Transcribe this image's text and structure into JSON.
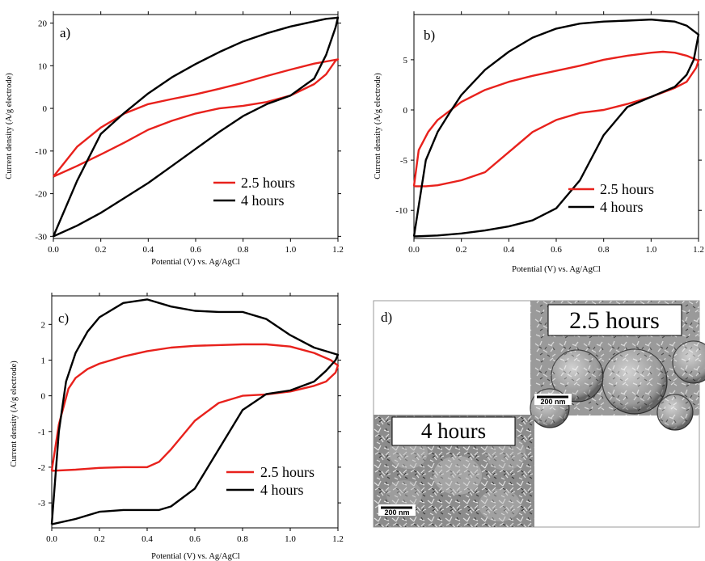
{
  "colors": {
    "red": "#e8211c",
    "black": "#000000"
  },
  "chart_data": [
    {
      "panel": "a)",
      "type": "line",
      "xlabel": "Potential (V) vs. Ag/AgCl",
      "ylabel": "Current density (A/g electrode)",
      "xlim": [
        0,
        1.2
      ],
      "ylim": [
        -30.5,
        22
      ],
      "xticks": [
        0.0,
        0.2,
        0.4,
        0.6,
        0.8,
        1.0,
        1.2
      ],
      "xtick_labels": [
        "0.0",
        "0.2",
        "0.4",
        "0.6",
        "0.8",
        "1.0",
        "1.2"
      ],
      "yticks": [
        -30,
        -20,
        -10,
        0,
        10,
        20
      ],
      "ytick_labels": [
        "-30",
        "-20",
        "-10",
        "0",
        "10",
        "20"
      ],
      "legend_position": "bottom-right",
      "series": [
        {
          "name": "2.5 hours",
          "color": "#e8211c",
          "x": [
            0.0,
            0.1,
            0.2,
            0.3,
            0.4,
            0.5,
            0.6,
            0.7,
            0.8,
            0.9,
            1.0,
            1.1,
            1.17,
            1.2,
            1.19,
            1.15,
            1.1,
            1.0,
            0.9,
            0.8,
            0.7,
            0.6,
            0.5,
            0.4,
            0.3,
            0.2,
            0.1,
            0.0
          ],
          "y": [
            -16,
            -9,
            -4.5,
            -1.2,
            1,
            2.2,
            3.3,
            4.6,
            6,
            7.6,
            9.1,
            10.5,
            11.2,
            11.5,
            11.2,
            8,
            5.7,
            3,
            1.5,
            0.6,
            0,
            -1.2,
            -2.9,
            -5,
            -8,
            -10.8,
            -13.5,
            -16
          ]
        },
        {
          "name": "4 hours",
          "color": "#000000",
          "x": [
            0.0,
            0.1,
            0.2,
            0.3,
            0.4,
            0.5,
            0.6,
            0.7,
            0.8,
            0.9,
            1.0,
            1.1,
            1.15,
            1.19,
            1.2,
            1.19,
            1.15,
            1.1,
            1.0,
            0.9,
            0.8,
            0.7,
            0.6,
            0.5,
            0.4,
            0.3,
            0.2,
            0.1,
            0.0
          ],
          "y": [
            -30,
            -17,
            -6,
            -1,
            3.5,
            7.3,
            10.4,
            13.2,
            15.7,
            17.6,
            19.2,
            20.4,
            21,
            21.2,
            21.3,
            19,
            12.5,
            7,
            3,
            1,
            -1.8,
            -5.5,
            -9.5,
            -13.5,
            -17.5,
            -21,
            -24.5,
            -27.5,
            -30
          ]
        }
      ]
    },
    {
      "panel": "b)",
      "type": "line",
      "xlabel": "Potential (V) vs. Ag/AgCl",
      "ylabel": "Current density (A/g electrode)",
      "xlim": [
        0,
        1.2
      ],
      "ylim": [
        -12.8,
        9.5
      ],
      "xticks": [
        0.0,
        0.2,
        0.4,
        0.6,
        0.8,
        1.0,
        1.2
      ],
      "xtick_labels": [
        "0.0",
        "0.2",
        "0.4",
        "0.6",
        "0.8",
        "1.0",
        "1.2"
      ],
      "yticks": [
        -10,
        -5,
        0,
        5
      ],
      "ytick_labels": [
        "-10",
        "-5",
        "0",
        "5"
      ],
      "legend_position": "bottom-right",
      "series": [
        {
          "name": "2.5 hours",
          "color": "#e8211c",
          "x": [
            0.0,
            0.02,
            0.06,
            0.1,
            0.2,
            0.3,
            0.4,
            0.5,
            0.6,
            0.7,
            0.8,
            0.9,
            1.0,
            1.05,
            1.1,
            1.15,
            1.2,
            1.19,
            1.17,
            1.15,
            1.1,
            1.0,
            0.9,
            0.8,
            0.7,
            0.6,
            0.5,
            0.4,
            0.3,
            0.2,
            0.1,
            0.05,
            0.0
          ],
          "y": [
            -7.6,
            -4,
            -2.2,
            -1,
            0.8,
            2,
            2.8,
            3.4,
            3.9,
            4.4,
            5,
            5.4,
            5.7,
            5.8,
            5.7,
            5.4,
            4.9,
            4.2,
            3.5,
            2.8,
            2.2,
            1.3,
            0.6,
            0,
            -0.3,
            -1,
            -2.2,
            -4.2,
            -6.2,
            -7,
            -7.5,
            -7.6,
            -7.6
          ]
        },
        {
          "name": "4 hours",
          "color": "#000000",
          "x": [
            0.0,
            0.05,
            0.1,
            0.15,
            0.2,
            0.3,
            0.4,
            0.5,
            0.6,
            0.7,
            0.8,
            0.9,
            1.0,
            1.05,
            1.1,
            1.15,
            1.2,
            1.18,
            1.15,
            1.1,
            1.0,
            0.9,
            0.8,
            0.7,
            0.6,
            0.5,
            0.4,
            0.3,
            0.2,
            0.1,
            0.0
          ],
          "y": [
            -12.6,
            -5,
            -2.2,
            -0.3,
            1.5,
            4,
            5.8,
            7.2,
            8.1,
            8.6,
            8.8,
            8.9,
            9,
            8.9,
            8.8,
            8.4,
            7.5,
            5,
            3.5,
            2.3,
            1.3,
            0.3,
            -2.5,
            -7,
            -9.8,
            -11,
            -11.6,
            -12,
            -12.3,
            -12.5,
            -12.6
          ]
        }
      ]
    },
    {
      "panel": "c)",
      "type": "line",
      "xlabel": "Potential (V) vs. Ag/AgCl",
      "ylabel": "Current density (A/g electrode)",
      "xlim": [
        0,
        1.2
      ],
      "ylim": [
        -3.7,
        2.8
      ],
      "xticks": [
        0.0,
        0.2,
        0.4,
        0.6,
        0.8,
        1.0,
        1.2
      ],
      "xtick_labels": [
        "0.0",
        "0.2",
        "0.4",
        "0.6",
        "0.8",
        "1.0",
        "1.2"
      ],
      "yticks": [
        -3,
        -2,
        -1,
        0,
        1,
        2
      ],
      "ytick_labels": [
        "-3",
        "-2",
        "-1",
        "0",
        "1",
        "2"
      ],
      "legend_position": "bottom-right",
      "series": [
        {
          "name": "2.5 hours",
          "color": "#e8211c",
          "x": [
            0.0,
            0.03,
            0.07,
            0.1,
            0.15,
            0.2,
            0.3,
            0.4,
            0.5,
            0.6,
            0.7,
            0.8,
            0.9,
            1.0,
            1.1,
            1.17,
            1.2,
            1.19,
            1.15,
            1.1,
            1.0,
            0.9,
            0.8,
            0.7,
            0.6,
            0.5,
            0.45,
            0.4,
            0.3,
            0.2,
            0.1,
            0.0
          ],
          "y": [
            -2.1,
            -0.8,
            0.2,
            0.5,
            0.75,
            0.9,
            1.1,
            1.25,
            1.35,
            1.4,
            1.42,
            1.44,
            1.44,
            1.38,
            1.2,
            1.0,
            0.85,
            0.65,
            0.4,
            0.28,
            0.12,
            0.04,
            0,
            -0.2,
            -0.7,
            -1.5,
            -1.85,
            -2.0,
            -2.0,
            -2.02,
            -2.07,
            -2.1
          ]
        },
        {
          "name": "4 hours",
          "color": "#000000",
          "x": [
            0.0,
            0.03,
            0.06,
            0.1,
            0.15,
            0.2,
            0.3,
            0.4,
            0.5,
            0.6,
            0.7,
            0.8,
            0.9,
            1.0,
            1.1,
            1.2,
            1.19,
            1.15,
            1.1,
            1.0,
            0.9,
            0.8,
            0.7,
            0.6,
            0.5,
            0.45,
            0.4,
            0.3,
            0.2,
            0.1,
            0.0
          ],
          "y": [
            -3.6,
            -1,
            0.4,
            1.2,
            1.8,
            2.2,
            2.6,
            2.7,
            2.5,
            2.38,
            2.35,
            2.35,
            2.15,
            1.7,
            1.35,
            1.15,
            1.0,
            0.7,
            0.4,
            0.15,
            0.05,
            -0.4,
            -1.5,
            -2.6,
            -3.1,
            -3.2,
            -3.2,
            -3.2,
            -3.25,
            -3.45,
            -3.6
          ]
        }
      ]
    }
  ],
  "panel_d": {
    "letter": "d)",
    "image_top_label": "2.5 hours",
    "image_bottom_label": "4 hours",
    "scale_bar_top": "200 nm",
    "scale_bar_bottom": "200 nm"
  }
}
